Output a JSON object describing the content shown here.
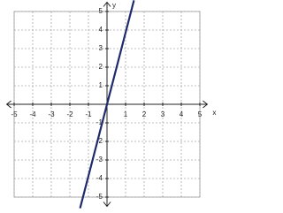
{
  "chart_data": {
    "type": "line",
    "x_label": "x",
    "y_label": "y",
    "x": [
      -1.45,
      1.45
    ],
    "series": [
      {
        "color": "#1f2a6b",
        "values": [
          -5.6,
          5.6
        ]
      }
    ],
    "xlim": [
      -5.4,
      5.4
    ],
    "ylim": [
      -5.5,
      5.5
    ],
    "xticks": [
      -5,
      -4,
      -3,
      -2,
      -1,
      1,
      2,
      3,
      4,
      5
    ],
    "yticks": [
      -5,
      -4,
      -3,
      -2,
      -1,
      1,
      2,
      3,
      4,
      5
    ],
    "grid": true
  }
}
